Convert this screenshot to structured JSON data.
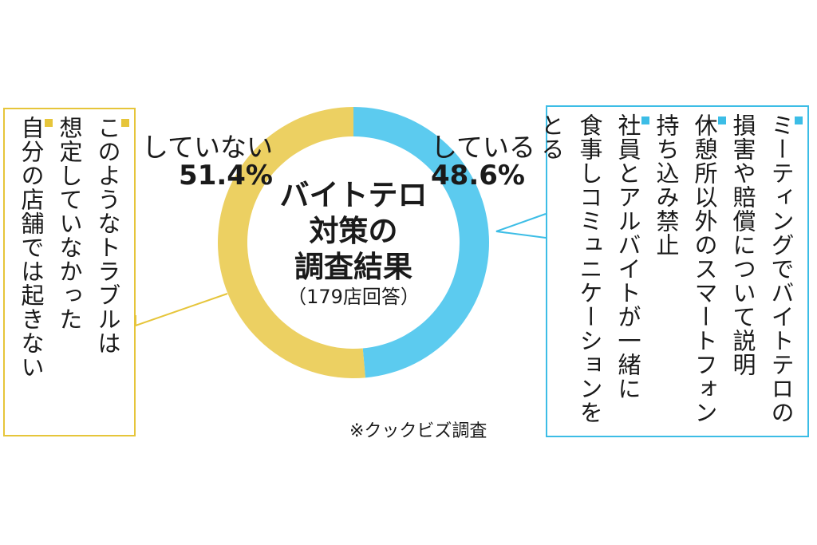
{
  "chart_data": {
    "type": "pie",
    "style": "donut",
    "title": [
      "バイトテロ",
      "対策の",
      "調査結果"
    ],
    "subtitle": "（179店回答）",
    "slices": [
      {
        "name": "している",
        "value": 48.6,
        "label": "48.6%",
        "color": "#5ccbef"
      },
      {
        "name": "していない",
        "value": 51.4,
        "label": "51.4%",
        "color": "#ecd062"
      }
    ],
    "start": "top",
    "direction": "clockwise"
  },
  "boxes": {
    "left": {
      "border_color": "#e6c53a",
      "items": [
        [
          "このようなトラブルは",
          "想定していなかった"
        ],
        [
          "自分の店舗では起きない"
        ]
      ]
    },
    "right": {
      "border_color": "#3cbde6",
      "items": [
        [
          "ミーティングでバイトテロの",
          "損害や賠償について説明"
        ],
        [
          "休憩所以外のスマートフォン",
          "持ち込み禁止"
        ],
        [
          "社員とアルバイトが一緒に",
          "食事しコミュニケーションを",
          "とる"
        ]
      ]
    }
  },
  "source_note": "※クックビズ調査"
}
